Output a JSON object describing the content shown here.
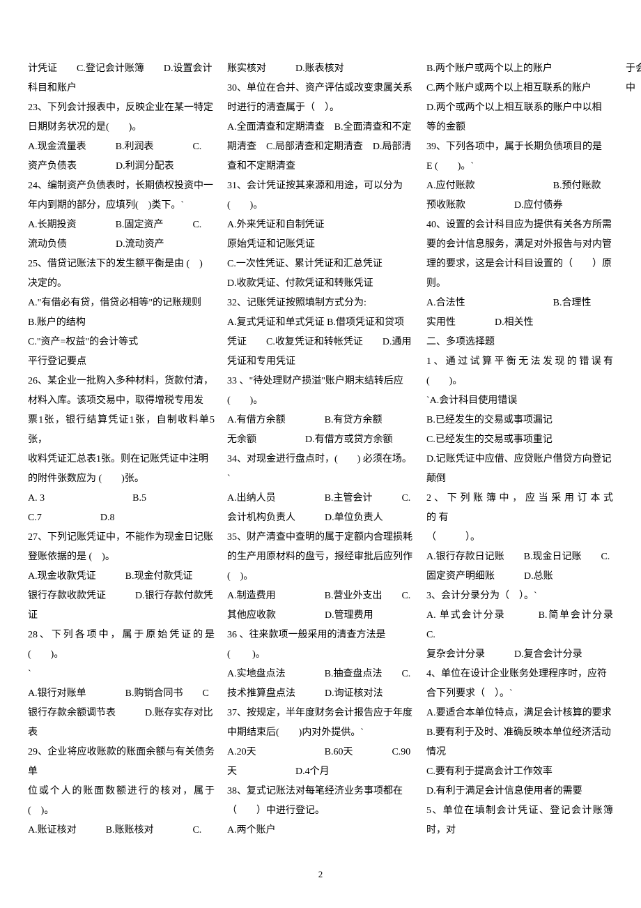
{
  "page": {
    "number": "2",
    "background_color": "#ffffff",
    "text_color": "#000000",
    "font_size_pt": 10.5,
    "line_height": 2.0,
    "column_count": 3
  },
  "col1": {
    "l1": "计凭证　　C.登记会计账簿　　D.设置会计",
    "l2": "科目和账户",
    "l3": "23、下列会计报表中，反映企业在某一特定",
    "l4": "日期财务状况的是(　　)。",
    "l5": "A.现金流量表　　　B.利润表　　　　C.",
    "l6": "资产负债表　　　　D.利润分配表",
    "l7": "24、编制资产负债表时，长期债权投资中一",
    "l8": "年内到期的部分，应填列(　)类下。`",
    "l9": "A.长期投资　　　　B.固定资产　　　C.",
    "l10": "流动负债　　　　　D.流动资产",
    "l11": "25、借贷记账法下的发生额平衡是由 (　)",
    "l12": "决定的。",
    "l13": "A.\"有借必有贷，借贷必相等\"的记账规则",
    "l14": "B.账户的结构",
    "l15": "C.\"资产=权益\"的会计等式",
    "l16": "平行登记要点",
    "l17": "26、某企业一批购入多种材料，货款付清，",
    "l18": "材料入库。该项交易中，取得增税专用发",
    "l19": "票1张，银行结算凭证1张，自制收料单5张，",
    "l20": "收料凭证汇总表1张。则在记账凭证中注明",
    "l21": "的附件张数应为 (　　)张。",
    "l22": "A. 3　　　　　　　　　B.5",
    "l23": "C.7　　　　　　D.8",
    "l24": "27、下列记账凭证中，不能作为现金日记账",
    "l25": "登账依据的是 (　)。",
    "l26": "A.现金收款凭证　　　B.现金付款凭证",
    "l27": "银行存款收款凭证　　　D.银行存款付款凭",
    "l28": "证",
    "l29": "28、下列各项中，属于原始凭证的是(　　)。",
    "l30": "`",
    "l31": "A.银行对账单　　　　B.购销合同书　　C",
    "l32": "银行存款余额调节表　　　D.账存实存对比",
    "l33": "表",
    "l34": "29、企业将应收账款的账面余额与有关债务单",
    "l35": "位或个人的账面数额进行的核对，属于 (　)。",
    "l36": "A.账证核对　　　B.账账核对　　　　C.",
    "l37": "账实核对　　　D.账表核对",
    "l38": "30、单位在合并、资产评估或改变隶属关系"
  },
  "col2": {
    "l1": "时进行的清查属于（　）。",
    "l2": "A.全面清查和定期清查　B.全面清查和不定",
    "l3": "期清查　C.局部清查和定期清查　D.局部清",
    "l4": "查和不定期清查",
    "l5": "31、会计凭证按其来源和用途，可以分为",
    "l6": "(　　)。",
    "l7": "A.外来凭证和自制凭证",
    "l8": "原始凭证和记账凭证",
    "l9": "C.一次性凭证、累计凭证和汇总凭证",
    "l10": "D.收款凭证、付款凭证和转账凭证",
    "l11": "32、记账凭证按照填制方式分为:",
    "l12": "A.复式凭证和单式凭证 B.借项凭证和贷项",
    "l13": "凭证　　C.收复凭证和转帐凭证　　D.通用",
    "l14": "凭证和专用凭证",
    "l15": "",
    "l16": "33 、\"待处理财产损溢\"账户期末结转后应",
    "l17": "(　　)。",
    "l18": "A.有借方余额　　　　B.有贷方余额",
    "l19": "无余额　　　　　D.有借方或贷方余额",
    "l20": "34、对现金进行盘点时，(　　) 必须在场。",
    "l21": "`",
    "l22": "A.出纳人员　　　　　B.主管会计　　　C.",
    "l23": "会计机构负责人　　　D.单位负责人",
    "l24": "35、财产清查中查明的属于定额内合理损耗",
    "l25": "的生产用原材料的盘亏，报经审批后应列作",
    "l26": "(　)。",
    "l27": "A.制造费用　　　　　B.营业外支出　　C.",
    "l28": "其他应收款　　　　　D.管理费用",
    "l29": "36 、往来款项一般采用的清查方法是",
    "l30": "(　　 )。",
    "l31": "A.实地盘点法　　　　B.抽查盘点法　　C.",
    "l32": "技术推算盘点法　　　D.询证核对法",
    "l33": "37、按规定，半年度财务会计报告应于年度",
    "l34": "中期结束后(　　)内对外提供。`",
    "l35": "A.20天　　　　　　　B.60天　　　　C.90",
    "l36": "天　　　　　　D.4个月",
    "l37": "38、复式记账法对每笔经济业务事项都在",
    "l38": "（　　）中进行登记。"
  },
  "col3": {
    "l1": "A.两个账户",
    "l2": "B.两个账户或两个以上的账户",
    "l3": "C.两个账户或两个以上相互联系的账户",
    "l4": "D.两个或两个以上相互联系的账户中以相",
    "l5": "等的金额",
    "l6": "39、下列各项中，属于长期负债项目的是",
    "l7": "E (　　)。`",
    "l8": "A.应付账款　　　　　　　　B.预付账款",
    "l9": "预收账款　　　　　D.应付债券",
    "l10": "40、设置的会计科目应为提供有关各方所需",
    "l11": "要的会计信息服务，满足对外报告与对内管",
    "l12": "理的要求，这是会计科目设置的（　　）原",
    "l13": "则。",
    "l14": "A.合法性　　　　　　　　　B.合理性",
    "l15": "实用性　　　　D.相关性",
    "l16": "二、多项选择题",
    "l17": "1、通过试算平衡无法发现的错误有(　　)。",
    "l18": "`A.会计科目使用错误",
    "l19": "B.已经发生的交易或事项漏记",
    "l20": "C.已经发生的交易或事项重记",
    "l21": "D.记账凭证中应借、应贷账户借贷方向登记",
    "l22": "颠倒",
    "l23": "2 、 下 列 账 簿 中 ， 应 当 采 用 订 本 式 的 有",
    "l24": "（　　　）。",
    "l25": "A.银行存款日记账　　B.现金日记账　　C.",
    "l26": "固定资产明细账　　　D.总账",
    "l27": "3、会计分录分为（　）。`",
    "l28": "A. 单式会计分录　　　B.简单会计分录　　C.",
    "l29": "复杂会计分录　　　D.复合会计分录",
    "l30": "4、单位在设计企业账务处理程序时，应符",
    "l31": "合下列要求（　）。`",
    "l32": "A.要适合本单位特点，满足会计核算的要求",
    "l33": "B.要有利于及时、准确反映本单位经济活动",
    "l34": "情况",
    "l35": "C.要有利于提高会计工作效率",
    "l36": "D.有利于满足会计信息使用者的需要",
    "l37": "5、单位在填制会计凭证、登记会计账簿时，对",
    "l38": "于会计科目的名称和编号的填列，下列说法中"
  }
}
